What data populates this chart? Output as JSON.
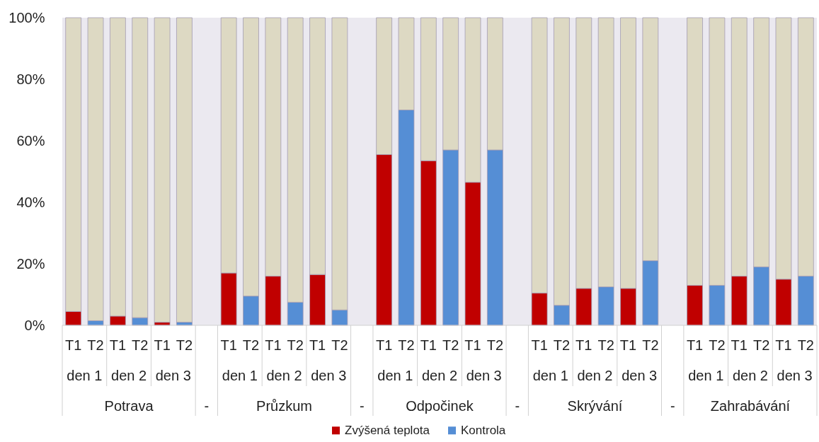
{
  "chart_data": {
    "type": "bar",
    "stacked": true,
    "categories": [
      "T1",
      "T2",
      "T1",
      "T2",
      "T1",
      "T2",
      null,
      "T1",
      "T2",
      "T1",
      "T2",
      "T1",
      "T2",
      null,
      "T1",
      "T2",
      "T1",
      "T2",
      "T1",
      "T2",
      null,
      "T1",
      "T2",
      "T1",
      "T2",
      "T1",
      "T2",
      null,
      "T1",
      "T2",
      "T1",
      "T2",
      "T1",
      "T2"
    ],
    "series": [
      {
        "name": "Zvýšená teplota",
        "color": "#c00000",
        "values": [
          4.5,
          null,
          3,
          null,
          1,
          null,
          null,
          17,
          null,
          16,
          null,
          16.5,
          null,
          null,
          55.5,
          null,
          53.5,
          null,
          46.5,
          null,
          null,
          10.5,
          null,
          12,
          null,
          12,
          null,
          null,
          13,
          null,
          16,
          null,
          15,
          null
        ]
      },
      {
        "name": "Kontrola",
        "color": "#558ed5",
        "values": [
          null,
          1.5,
          null,
          2.5,
          null,
          1,
          null,
          null,
          9.5,
          null,
          7.5,
          null,
          5,
          null,
          null,
          70,
          null,
          57,
          null,
          57,
          null,
          null,
          6.5,
          null,
          12.5,
          null,
          21,
          null,
          null,
          13,
          null,
          19,
          null,
          16
        ]
      },
      {
        "color": "#ddd9c3",
        "values": [
          95.5,
          98.5,
          97,
          97.5,
          99,
          99,
          null,
          83,
          90.5,
          84,
          92.5,
          83.5,
          95,
          null,
          44.5,
          30,
          46.5,
          43,
          53.5,
          43,
          null,
          89.5,
          93.5,
          88,
          87.5,
          88,
          79,
          null,
          87,
          87,
          84,
          81,
          85,
          84
        ]
      }
    ],
    "ylim": [
      0,
      100
    ],
    "yticks": [
      {
        "value": 0,
        "label": "0%"
      },
      {
        "value": 20,
        "label": "20%"
      },
      {
        "value": 40,
        "label": "40%"
      },
      {
        "value": 60,
        "label": "60%"
      },
      {
        "value": 80,
        "label": "80%"
      },
      {
        "value": 100,
        "label": "100%"
      }
    ],
    "legend": "bottom",
    "annotations": [
      "den 1",
      "den 2",
      "den 3",
      "den 1",
      "den 2",
      "den 3",
      "den 1",
      "den 2",
      "den 3",
      "den 1",
      "den 2",
      "den 3",
      "den 1",
      "den 2",
      "den 3",
      "Potrava",
      "-",
      "Průzkum",
      "-",
      "Odpočinek",
      "-",
      "Skrývání",
      "-",
      "Zahrabávání"
    ]
  }
}
